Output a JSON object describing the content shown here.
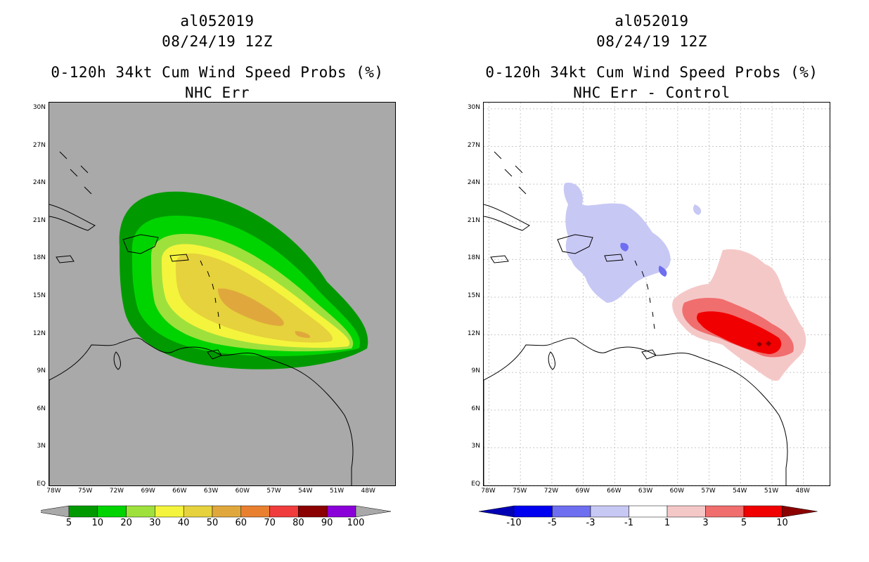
{
  "colors": {
    "ocean_left": "#a9a9a9",
    "ocean_right": "#ffffff",
    "prob_scale": [
      "#009a00",
      "#00d400",
      "#9ee13c",
      "#f4f43c",
      "#e6d23c",
      "#e0a83c",
      "#e98030",
      "#f03c3c",
      "#8b0000",
      "#8a00d8"
    ],
    "diff_scale": [
      "#0000b4",
      "#0000f0",
      "#6e6ef0",
      "#c8c8f5",
      "#ffffff",
      "#f5c8c8",
      "#f06e6e",
      "#f00000",
      "#8b0000"
    ]
  },
  "panels": [
    {
      "id": "left",
      "storm": "al052019",
      "datetime": "08/24/19 12Z",
      "title": "0-120h 34kt Cum Wind Speed Probs (%)",
      "subtitle": "NHC Err",
      "lat_labels": [
        "30N",
        "27N",
        "24N",
        "21N",
        "18N",
        "15N",
        "12N",
        "9N",
        "6N",
        "3N",
        "EQ"
      ],
      "lon_labels": [
        "78W",
        "75W",
        "72W",
        "69W",
        "66W",
        "63W",
        "60W",
        "57W",
        "54W",
        "51W",
        "48W"
      ],
      "colorbar_labels": [
        "5",
        "10",
        "20",
        "30",
        "40",
        "50",
        "60",
        "70",
        "80",
        "90",
        "100"
      ]
    },
    {
      "id": "right",
      "storm": "al052019",
      "datetime": "08/24/19 12Z",
      "title": "0-120h 34kt Cum Wind Speed Probs (%)",
      "subtitle": "NHC Err - Control",
      "lat_labels": [
        "30N",
        "27N",
        "24N",
        "21N",
        "18N",
        "15N",
        "12N",
        "9N",
        "6N",
        "3N",
        "EQ"
      ],
      "lon_labels": [
        "78W",
        "75W",
        "72W",
        "69W",
        "66W",
        "63W",
        "60W",
        "57W",
        "54W",
        "51W",
        "48W"
      ],
      "colorbar_labels": [
        "-10",
        "-5",
        "-3",
        "-1",
        "1",
        "3",
        "5",
        "10"
      ]
    }
  ],
  "map_extent": {
    "lon_min": -78.5,
    "lon_max": -45.5,
    "lat_min": 0,
    "lat_max": 30.5
  }
}
